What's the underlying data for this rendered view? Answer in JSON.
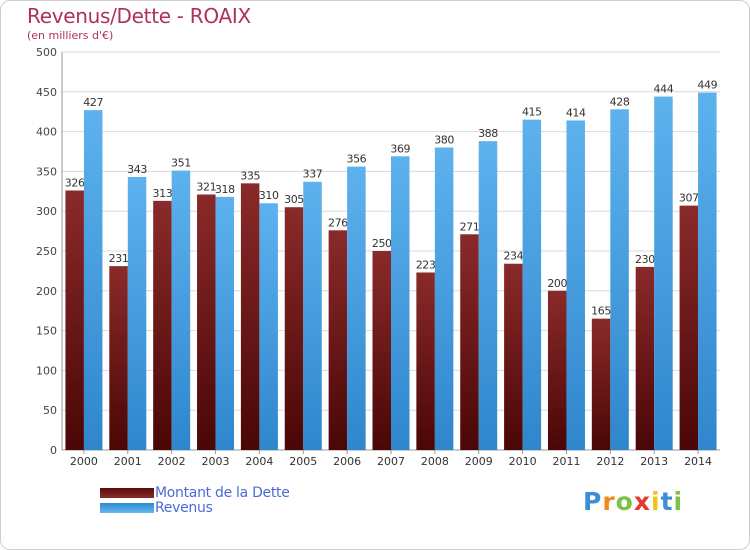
{
  "title": "Revenus/Dette - ROAIX",
  "subtitle": "(en milliers d'€)",
  "colors": {
    "dette": "#7a1a1a",
    "revenus": "#3b9be0",
    "grid": "#d9d9d9",
    "title": "#b0305a",
    "legend_text": "#4a6ad8"
  },
  "chart_data": {
    "type": "bar",
    "categories": [
      "2000",
      "2001",
      "2002",
      "2003",
      "2004",
      "2005",
      "2006",
      "2007",
      "2008",
      "2009",
      "2010",
      "2011",
      "2012",
      "2013",
      "2014"
    ],
    "series": [
      {
        "name": "Montant de la Dette",
        "values": [
          326,
          231,
          313,
          321,
          335,
          305,
          276,
          250,
          223,
          271,
          234,
          200,
          165,
          230,
          307
        ]
      },
      {
        "name": "Revenus",
        "values": [
          427,
          343,
          351,
          318,
          310,
          337,
          356,
          369,
          380,
          388,
          415,
          414,
          428,
          444,
          449
        ]
      }
    ],
    "yticks": [
      0,
      50,
      100,
      150,
      200,
      250,
      300,
      350,
      400,
      450,
      500
    ],
    "ylim": [
      0,
      500
    ],
    "grid": true,
    "legend": "bottom-left"
  },
  "legend": {
    "items": [
      {
        "label": "Montant de la Dette",
        "icon": "dette-swatch"
      },
      {
        "label": "Revenus",
        "icon": "revenus-swatch"
      }
    ]
  },
  "logo": {
    "letters": [
      "P",
      "r",
      "o",
      "x",
      "i",
      "t",
      "i"
    ],
    "colors": [
      "#3a8fd6",
      "#f08a1c",
      "#7cc243",
      "#e8372c",
      "#f0c419",
      "#3a8fd6",
      "#7cc243"
    ]
  }
}
